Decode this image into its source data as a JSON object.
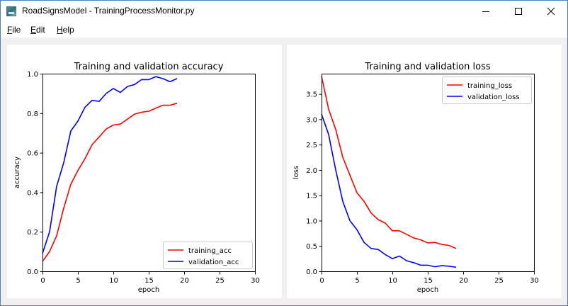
{
  "window": {
    "title": "RoadSignsModel - TrainingProcessMonitor.py",
    "controls": [
      "minimize-icon",
      "maximize-icon",
      "close-icon"
    ]
  },
  "menu": {
    "file": {
      "prefix": "",
      "accel": "F",
      "rest": "ile"
    },
    "edit": {
      "prefix": "",
      "accel": "E",
      "rest": "dit"
    },
    "help": {
      "prefix": "",
      "accel": "H",
      "rest": "elp"
    }
  },
  "chart_data": [
    {
      "type": "line",
      "title": "Training and validation accuracy",
      "xlabel": "epoch",
      "ylabel": "accuracy",
      "xlim": [
        0,
        30
      ],
      "ylim": [
        0,
        1.0
      ],
      "xticks": [
        "0",
        "5",
        "10",
        "15",
        "20",
        "25",
        "30"
      ],
      "yticks": [
        "0.0",
        "0.2",
        "0.4",
        "0.6",
        "0.8",
        "1.0"
      ],
      "grid": false,
      "legend_position": "lower-right",
      "x": [
        0,
        1,
        2,
        3,
        4,
        5,
        6,
        7,
        8,
        9,
        10,
        11,
        12,
        13,
        14,
        15,
        16,
        17,
        18,
        19
      ],
      "series": [
        {
          "name": "training_acc",
          "color": "#ff0000",
          "values": [
            0.05,
            0.1,
            0.18,
            0.32,
            0.44,
            0.51,
            0.57,
            0.64,
            0.68,
            0.72,
            0.74,
            0.745,
            0.77,
            0.795,
            0.805,
            0.81,
            0.825,
            0.84,
            0.84,
            0.85
          ]
        },
        {
          "name": "validation_acc",
          "color": "#0000ff",
          "values": [
            0.09,
            0.2,
            0.43,
            0.55,
            0.71,
            0.76,
            0.83,
            0.865,
            0.86,
            0.9,
            0.925,
            0.905,
            0.935,
            0.945,
            0.97,
            0.97,
            0.985,
            0.975,
            0.96,
            0.975
          ]
        }
      ]
    },
    {
      "type": "line",
      "title": "Training and validation loss",
      "xlabel": "epoch",
      "ylabel": "loss",
      "xlim": [
        0,
        30
      ],
      "ylim": [
        0,
        3.9
      ],
      "xticks": [
        "0",
        "5",
        "10",
        "15",
        "20",
        "25",
        "30"
      ],
      "yticks": [
        "0.0",
        "0.5",
        "1.0",
        "1.5",
        "2.0",
        "2.5",
        "3.0",
        "3.5"
      ],
      "grid": false,
      "legend_position": "upper-right",
      "x": [
        0,
        1,
        2,
        3,
        4,
        5,
        6,
        7,
        8,
        9,
        10,
        11,
        12,
        13,
        14,
        15,
        16,
        17,
        18,
        19
      ],
      "series": [
        {
          "name": "training_loss",
          "color": "#ff0000",
          "values": [
            3.85,
            3.2,
            2.8,
            2.25,
            1.9,
            1.55,
            1.38,
            1.15,
            1.02,
            0.95,
            0.8,
            0.8,
            0.73,
            0.66,
            0.62,
            0.56,
            0.57,
            0.53,
            0.51,
            0.45
          ]
        },
        {
          "name": "validation_loss",
          "color": "#0000ff",
          "values": [
            3.1,
            2.7,
            2.0,
            1.38,
            1.0,
            0.82,
            0.57,
            0.45,
            0.43,
            0.33,
            0.25,
            0.3,
            0.21,
            0.17,
            0.12,
            0.12,
            0.09,
            0.11,
            0.1,
            0.08
          ]
        }
      ]
    }
  ]
}
